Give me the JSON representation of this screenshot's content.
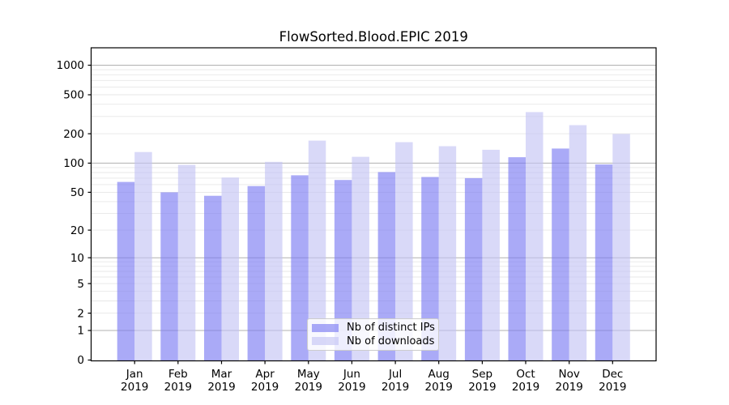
{
  "chart_data": {
    "type": "bar",
    "title": "FlowSorted.Blood.EPIC 2019",
    "categories": [
      "Jan",
      "Feb",
      "Mar",
      "Apr",
      "May",
      "Jun",
      "Jul",
      "Aug",
      "Sep",
      "Oct",
      "Nov",
      "Dec"
    ],
    "category_year": "2019",
    "series": [
      {
        "name": "Nb of distinct IPs",
        "color": "#7878f3",
        "opacity": 0.63,
        "values": [
          64,
          50,
          46,
          58,
          75,
          67,
          81,
          72,
          70,
          115,
          141,
          97
        ]
      },
      {
        "name": "Nb of downloads",
        "color": "#c3c3f4",
        "opacity": 0.63,
        "values": [
          130,
          96,
          71,
          103,
          170,
          116,
          164,
          149,
          137,
          333,
          245,
          199
        ]
      }
    ],
    "yscale": "log1p",
    "y_tick_labels": [
      "0",
      "1",
      "2",
      "5",
      "10",
      "20",
      "50",
      "100",
      "200",
      "500",
      "1000"
    ],
    "y_ticks": [
      0,
      1,
      2,
      5,
      10,
      20,
      50,
      100,
      200,
      500,
      1000
    ],
    "ylim": [
      0,
      1500
    ],
    "grid": "on",
    "legend_position": "lower center",
    "colors": {
      "grid_major": "#b0b0b0",
      "grid_minor": "#e7e7e7",
      "spine": "#000000",
      "text": "#000000"
    }
  }
}
